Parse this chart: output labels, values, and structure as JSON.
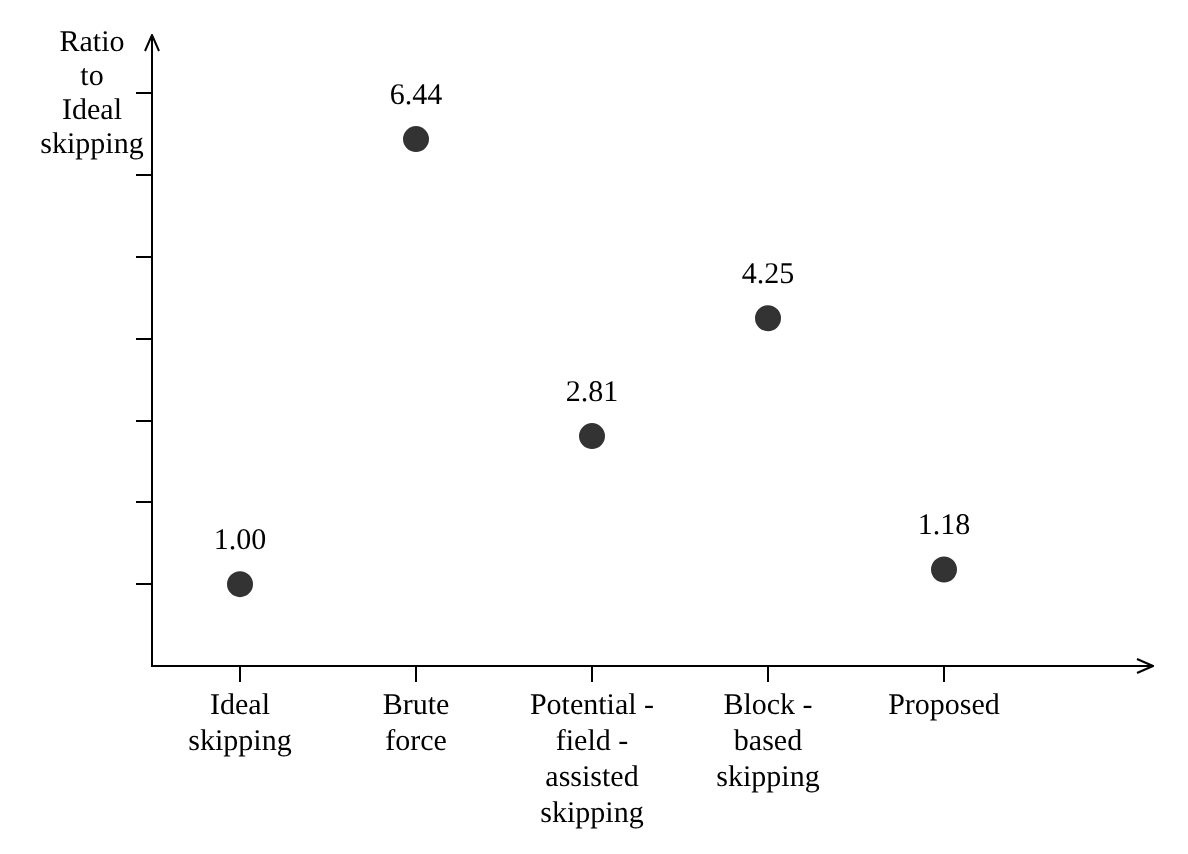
{
  "chart_data": {
    "type": "scatter",
    "ylabel": "Ratio\nto\nIdeal\nskipping",
    "categories": [
      "Ideal\nskipping",
      "Brute\nforce",
      "Potential -\nfield -\nassisted\nskipping",
      "Block -\nbased\nskipping",
      "Proposed"
    ],
    "values": [
      1.0,
      6.44,
      2.81,
      4.25,
      1.18
    ],
    "value_labels": [
      "1.00",
      "6.44",
      "2.81",
      "4.25",
      "1.18"
    ],
    "color": "#333333",
    "marker": "circle",
    "ylim": [
      0,
      7.7
    ],
    "yticks": [
      {
        "value": 1,
        "label": null
      },
      {
        "value": 2,
        "label": null
      },
      {
        "value": 3,
        "label": null
      },
      {
        "value": 4,
        "label": null
      },
      {
        "value": 5,
        "label": null
      },
      {
        "value": 6,
        "label": null
      },
      {
        "value": 7,
        "label": null
      }
    ],
    "grid": false,
    "legend": false
  }
}
